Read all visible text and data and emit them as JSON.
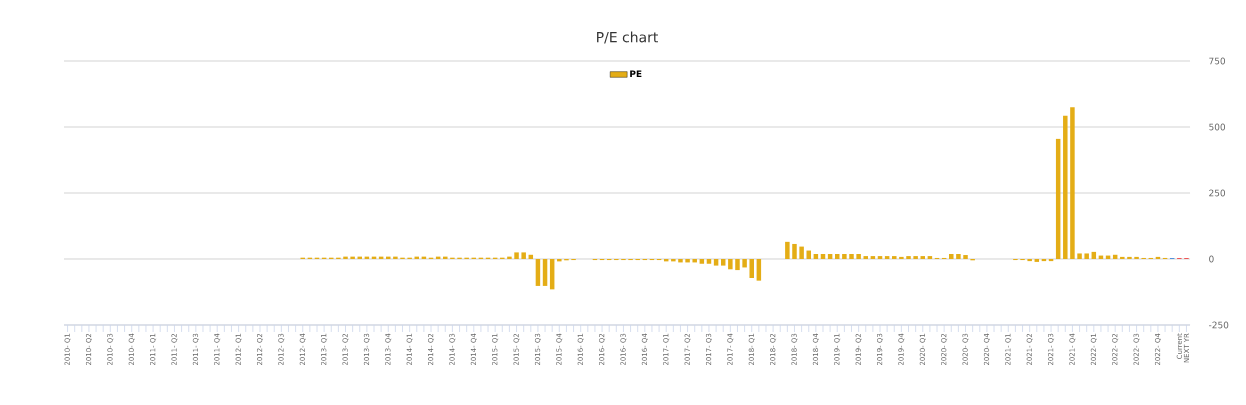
{
  "chart_data": {
    "type": "bar",
    "title": "P/E chart",
    "categories": [
      "2010- Q1",
      null,
      null,
      "2010- Q2",
      null,
      null,
      "2010- Q3",
      null,
      null,
      "2010- Q4",
      null,
      null,
      "2011- Q1",
      null,
      null,
      "2011- Q2",
      null,
      null,
      "2011- Q3",
      null,
      null,
      "2011- Q4",
      null,
      null,
      "2012- Q1",
      null,
      null,
      "2012- Q2",
      null,
      null,
      "2012- Q3",
      null,
      null,
      "2012- Q4",
      null,
      null,
      "2013- Q1",
      null,
      null,
      "2013- Q2",
      null,
      null,
      "2013- Q3",
      null,
      null,
      "2013- Q4",
      null,
      null,
      "2014- Q1",
      null,
      null,
      "2014- Q2",
      null,
      null,
      "2014- Q3",
      null,
      null,
      "2014- Q4",
      null,
      null,
      "2015- Q1",
      null,
      null,
      "2015- Q2",
      null,
      null,
      "2015- Q3",
      null,
      null,
      "2015- Q4",
      null,
      null,
      "2016- Q1",
      null,
      null,
      "2016- Q2",
      null,
      null,
      "2016- Q3",
      null,
      null,
      "2016- Q4",
      null,
      null,
      "2017- Q1",
      null,
      null,
      "2017- Q2",
      null,
      null,
      "2017- Q3",
      null,
      null,
      "2017- Q4",
      null,
      null,
      "2018- Q1",
      null,
      null,
      "2018- Q2",
      null,
      null,
      "2018- Q3",
      null,
      null,
      "2018- Q4",
      null,
      null,
      "2019- Q1",
      null,
      null,
      "2019- Q2",
      null,
      null,
      "2019- Q3",
      null,
      null,
      "2019- Q4",
      null,
      null,
      "2020- Q1",
      null,
      null,
      "2020- Q2",
      null,
      null,
      "2020- Q3",
      null,
      null,
      "2020- Q4",
      null,
      null,
      "2021- Q1",
      null,
      null,
      "2021- Q2",
      null,
      null,
      "2021- Q3",
      null,
      null,
      "2021- Q4",
      null,
      null,
      "2022- Q1",
      null,
      null,
      "2022- Q2",
      null,
      null,
      "2022- Q3",
      null,
      null,
      "2022- Q4",
      null,
      null,
      "Current",
      "NEXT YR"
    ],
    "series": [
      {
        "name": "PE",
        "color": "#e4ad16",
        "values": [
          null,
          null,
          null,
          null,
          null,
          null,
          null,
          null,
          null,
          null,
          null,
          null,
          null,
          null,
          null,
          null,
          null,
          null,
          null,
          null,
          null,
          null,
          null,
          null,
          null,
          null,
          null,
          null,
          null,
          null,
          null,
          null,
          null,
          5,
          5,
          5,
          5,
          5,
          5,
          9,
          9,
          9,
          9,
          9,
          9,
          9,
          9,
          5,
          5,
          9,
          9,
          5,
          9,
          9,
          5,
          5,
          5,
          5,
          5,
          5,
          5,
          5,
          9,
          25,
          25,
          16,
          -102,
          -102,
          -115,
          -9,
          -5,
          -4,
          null,
          null,
          -4,
          -4,
          -4,
          -4,
          -4,
          -4,
          -4,
          -4,
          -4,
          -4,
          -9,
          -9,
          -13,
          -13,
          -13,
          -18,
          -18,
          -25,
          -25,
          -39,
          -42,
          -32,
          -72,
          -82,
          null,
          null,
          null,
          65,
          57,
          47,
          32,
          19,
          19,
          19,
          19,
          19,
          19,
          19,
          11,
          11,
          11,
          11,
          11,
          8,
          11,
          11,
          11,
          11,
          4,
          4,
          19,
          19,
          15,
          -5,
          null,
          null,
          null,
          null,
          null,
          -4,
          -4,
          -8,
          -11,
          -8,
          -8,
          455,
          543,
          575,
          21,
          21,
          27,
          13,
          13,
          16,
          8,
          8,
          8,
          4,
          4,
          8,
          4,
          3,
          3,
          3
        ],
        "colors": [
          "#e4ad16",
          "#e4ad16",
          "#e4ad16",
          "#e4ad16",
          "#e4ad16",
          "#e4ad16",
          "#e4ad16",
          "#e4ad16",
          "#e4ad16",
          "#e4ad16",
          "#e4ad16",
          "#e4ad16",
          "#e4ad16",
          "#e4ad16",
          "#e4ad16",
          "#e4ad16",
          "#e4ad16",
          "#e4ad16",
          "#e4ad16",
          "#e4ad16",
          "#e4ad16",
          "#e4ad16",
          "#e4ad16",
          "#e4ad16",
          "#e4ad16",
          "#e4ad16",
          "#e4ad16",
          "#e4ad16",
          "#e4ad16",
          "#e4ad16",
          "#e4ad16",
          "#e4ad16",
          "#e4ad16",
          "#e4ad16",
          "#e4ad16",
          "#e4ad16",
          "#e4ad16",
          "#e4ad16",
          "#e4ad16",
          "#e4ad16",
          "#e4ad16",
          "#e4ad16",
          "#e4ad16",
          "#e4ad16",
          "#e4ad16",
          "#e4ad16",
          "#e4ad16",
          "#e4ad16",
          "#e4ad16",
          "#e4ad16",
          "#e4ad16",
          "#e4ad16",
          "#e4ad16",
          "#e4ad16",
          "#e4ad16",
          "#e4ad16",
          "#e4ad16",
          "#e4ad16",
          "#e4ad16",
          "#e4ad16",
          "#e4ad16",
          "#e4ad16",
          "#e4ad16",
          "#e4ad16",
          "#e4ad16",
          "#e4ad16",
          "#e4ad16",
          "#e4ad16",
          "#e4ad16",
          "#e4ad16",
          "#e4ad16",
          "#e4ad16",
          "#e4ad16",
          "#e4ad16",
          "#e4ad16",
          "#e4ad16",
          "#e4ad16",
          "#e4ad16",
          "#e4ad16",
          "#e4ad16",
          "#e4ad16",
          "#e4ad16",
          "#e4ad16",
          "#e4ad16",
          "#e4ad16",
          "#e4ad16",
          "#e4ad16",
          "#e4ad16",
          "#e4ad16",
          "#e4ad16",
          "#e4ad16",
          "#e4ad16",
          "#e4ad16",
          "#e4ad16",
          "#e4ad16",
          "#e4ad16",
          "#e4ad16",
          "#e4ad16",
          "#e4ad16",
          "#e4ad16",
          "#e4ad16",
          "#e4ad16",
          "#e4ad16",
          "#e4ad16",
          "#e4ad16",
          "#e4ad16",
          "#e4ad16",
          "#e4ad16",
          "#e4ad16",
          "#e4ad16",
          "#e4ad16",
          "#e4ad16",
          "#e4ad16",
          "#e4ad16",
          "#e4ad16",
          "#e4ad16",
          "#e4ad16",
          "#e4ad16",
          "#e4ad16",
          "#e4ad16",
          "#e4ad16",
          "#e4ad16",
          "#e4ad16",
          "#e4ad16",
          "#e4ad16",
          "#e4ad16",
          "#e4ad16",
          "#e4ad16",
          "#e4ad16",
          "#e4ad16",
          "#e4ad16",
          "#e4ad16",
          "#e4ad16",
          "#e4ad16",
          "#e4ad16",
          "#e4ad16",
          "#e4ad16",
          "#e4ad16",
          "#e4ad16",
          "#e4ad16",
          "#e4ad16",
          "#e4ad16",
          "#e4ad16",
          "#e4ad16",
          "#e4ad16",
          "#e4ad16",
          "#e4ad16",
          "#e4ad16",
          "#e4ad16",
          "#e4ad16",
          "#e4ad16",
          "#e4ad16",
          "#e4ad16",
          "#e4ad16",
          "#e4ad16",
          "#2f7ed8",
          "#f23030",
          "#f23030"
        ]
      }
    ],
    "ylim": [
      -250,
      750
    ],
    "yticks": [
      -250,
      0,
      250,
      500,
      750
    ],
    "grid": "y",
    "legend": "top"
  }
}
